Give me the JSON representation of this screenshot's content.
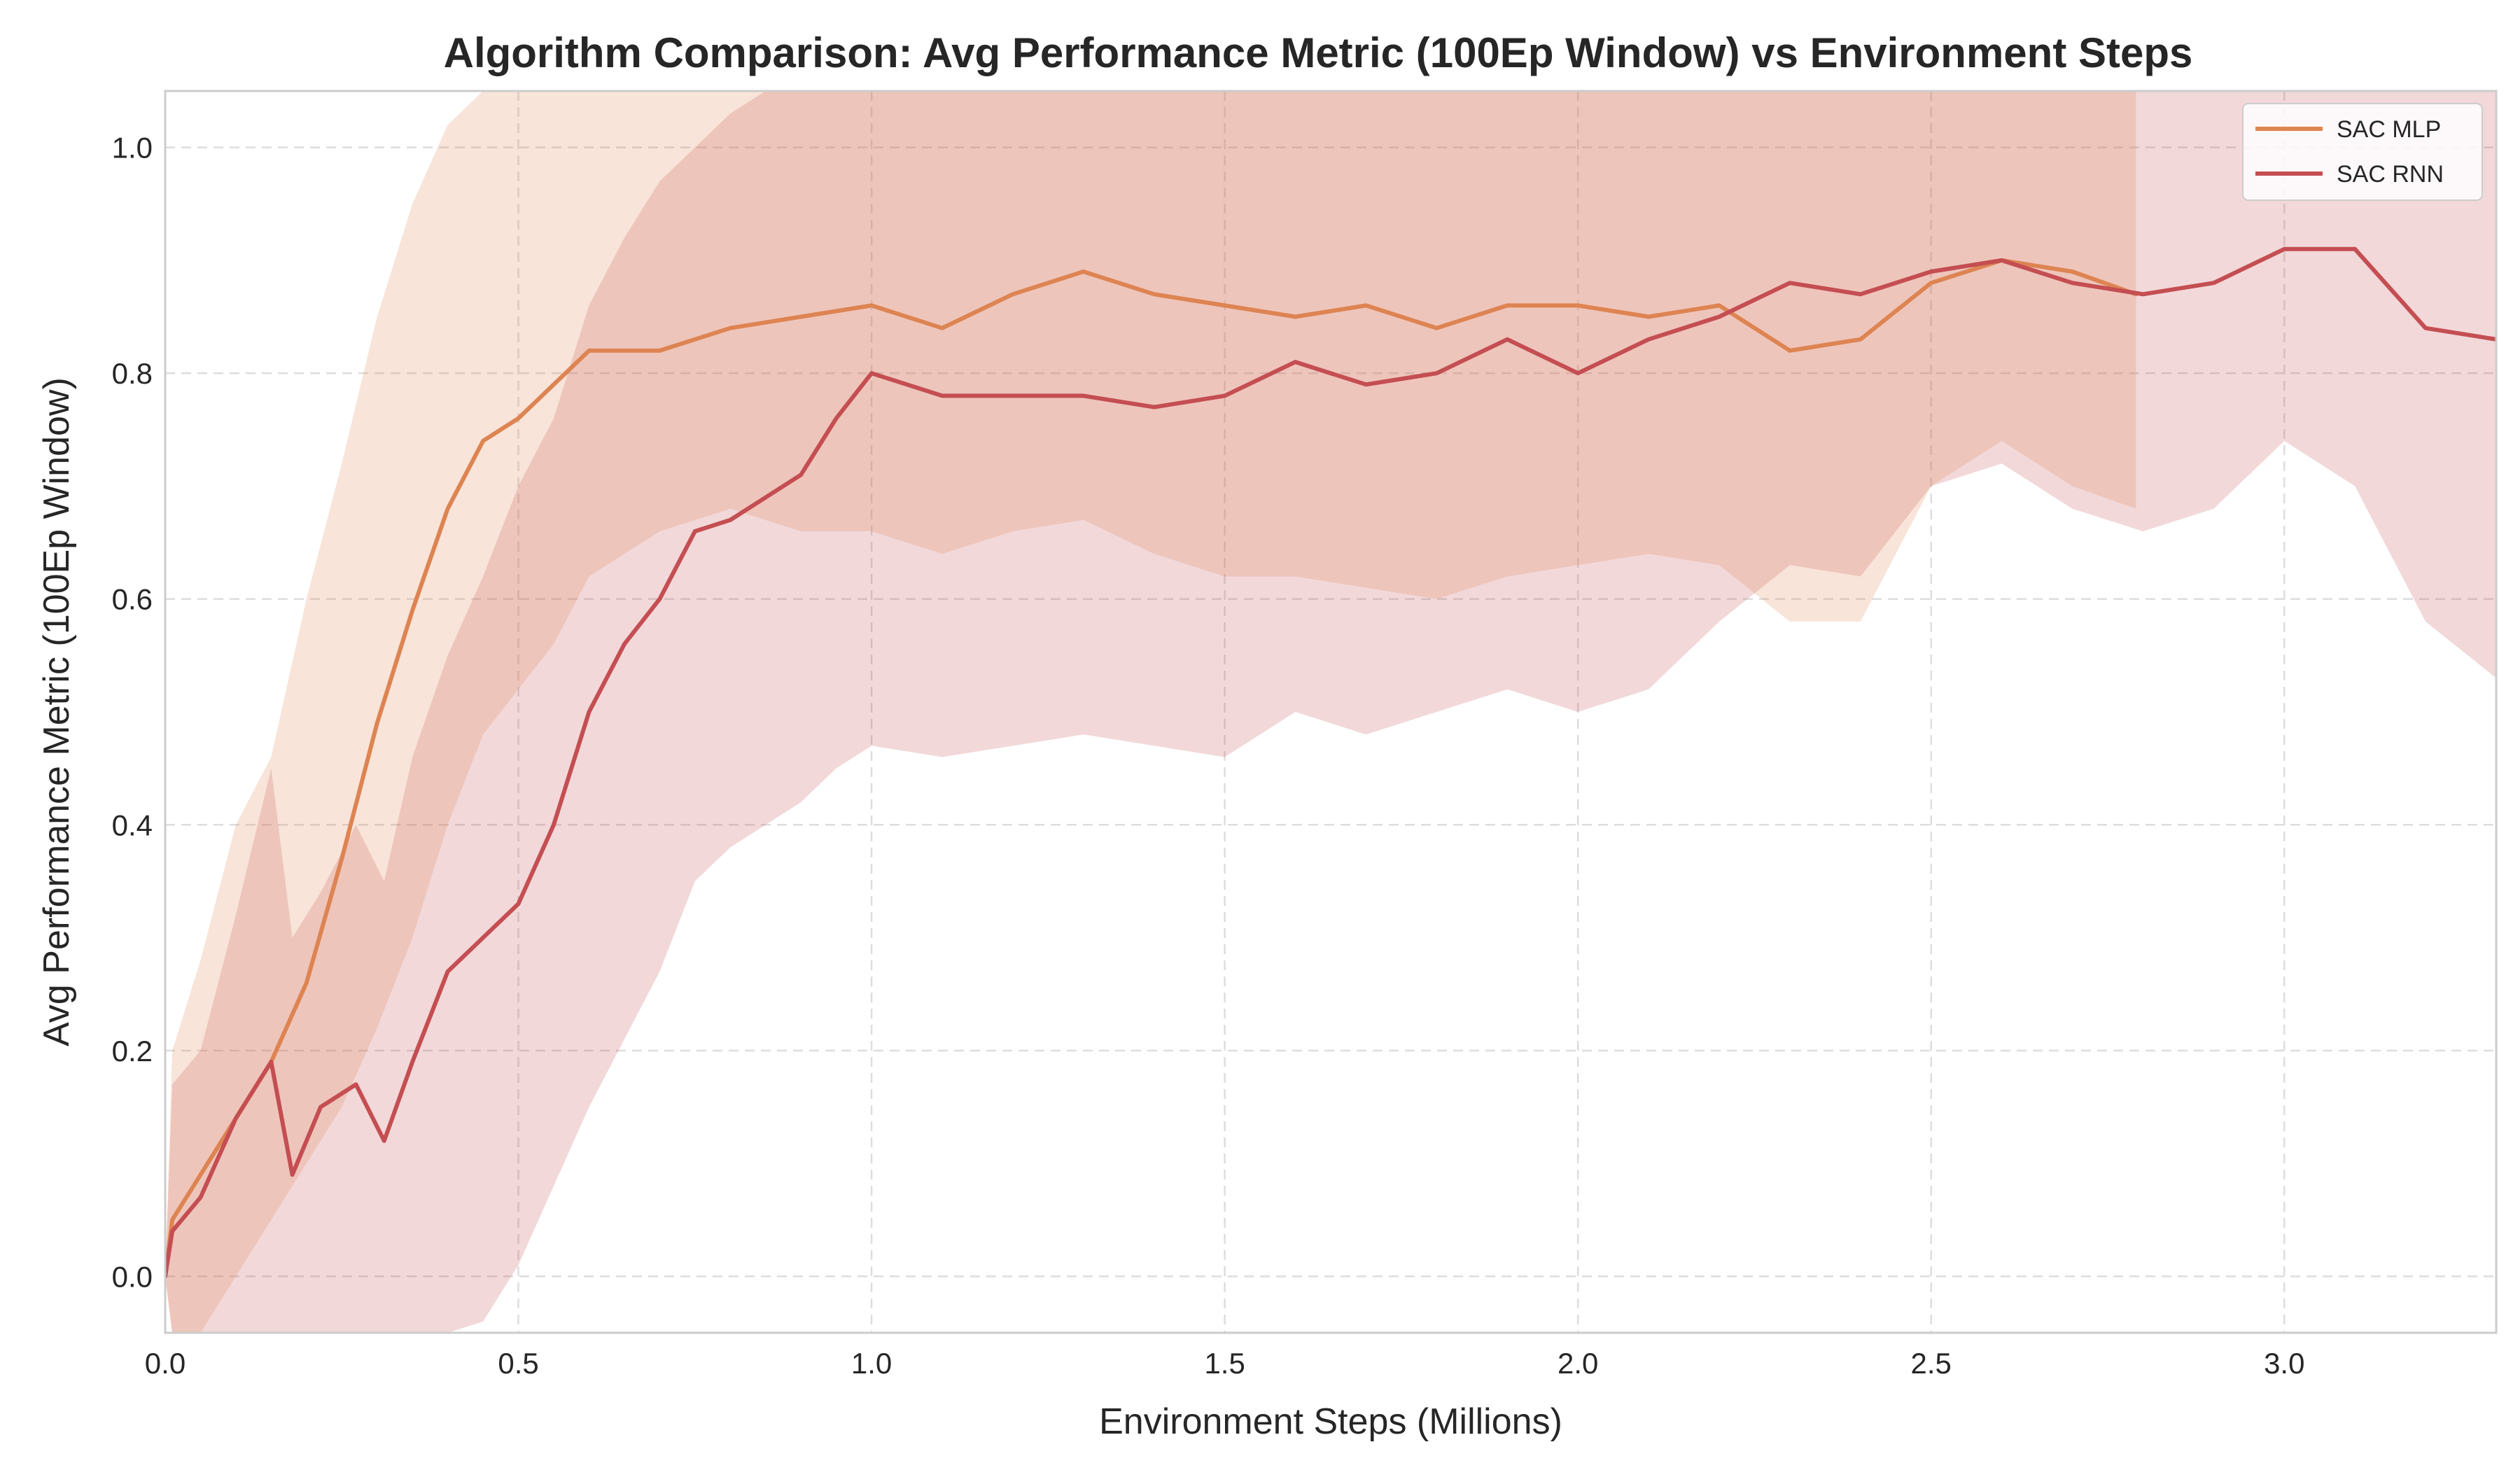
{
  "chart_data": {
    "type": "line",
    "title": "Algorithm Comparison: Avg Performance Metric (100Ep Window) vs Environment Steps",
    "xlabel": "Environment Steps (Millions)",
    "ylabel": "Avg Performance Metric (100Ep Window)",
    "xlim": [
      0.0,
      3.3
    ],
    "ylim": [
      -0.05,
      1.05
    ],
    "xticks": [
      "0.0",
      "0.5",
      "1.0",
      "1.5",
      "2.0",
      "2.5",
      "3.0"
    ],
    "yticks": [
      "0.0",
      "0.2",
      "0.4",
      "0.6",
      "0.8",
      "1.0"
    ],
    "grid": true,
    "legend_position": "top-right",
    "series": [
      {
        "name": "SAC MLP",
        "color": "#dd8452",
        "points": [
          [
            0.0,
            0.0,
            0.0,
            0.0
          ],
          [
            0.01,
            0.05,
            -0.05,
            0.2
          ],
          [
            0.05,
            0.09,
            -0.05,
            0.28
          ],
          [
            0.1,
            0.14,
            0.0,
            0.4
          ],
          [
            0.15,
            0.19,
            0.05,
            0.46
          ],
          [
            0.2,
            0.26,
            0.1,
            0.6
          ],
          [
            0.25,
            0.37,
            0.15,
            0.72
          ],
          [
            0.3,
            0.49,
            0.22,
            0.85
          ],
          [
            0.35,
            0.59,
            0.3,
            0.95
          ],
          [
            0.4,
            0.68,
            0.4,
            1.02
          ],
          [
            0.45,
            0.74,
            0.48,
            1.05
          ],
          [
            0.5,
            0.76,
            0.52,
            1.05
          ],
          [
            0.55,
            0.79,
            0.56,
            1.05
          ],
          [
            0.6,
            0.82,
            0.62,
            1.05
          ],
          [
            0.7,
            0.82,
            0.66,
            1.05
          ],
          [
            0.8,
            0.84,
            0.68,
            1.05
          ],
          [
            0.9,
            0.85,
            0.66,
            1.05
          ],
          [
            1.0,
            0.86,
            0.66,
            1.05
          ],
          [
            1.1,
            0.84,
            0.64,
            1.05
          ],
          [
            1.2,
            0.87,
            0.66,
            1.05
          ],
          [
            1.3,
            0.89,
            0.67,
            1.05
          ],
          [
            1.4,
            0.87,
            0.64,
            1.05
          ],
          [
            1.5,
            0.86,
            0.62,
            1.05
          ],
          [
            1.6,
            0.85,
            0.62,
            1.05
          ],
          [
            1.7,
            0.86,
            0.61,
            1.05
          ],
          [
            1.8,
            0.84,
            0.6,
            1.05
          ],
          [
            1.9,
            0.86,
            0.62,
            1.05
          ],
          [
            2.0,
            0.86,
            0.63,
            1.05
          ],
          [
            2.1,
            0.85,
            0.64,
            1.05
          ],
          [
            2.2,
            0.86,
            0.63,
            1.05
          ],
          [
            2.3,
            0.82,
            0.58,
            1.05
          ],
          [
            2.4,
            0.83,
            0.58,
            1.05
          ],
          [
            2.5,
            0.88,
            0.7,
            1.05
          ],
          [
            2.6,
            0.9,
            0.74,
            1.05
          ],
          [
            2.7,
            0.89,
            0.7,
            1.05
          ],
          [
            2.79,
            0.87,
            0.68,
            1.05
          ]
        ]
      },
      {
        "name": "SAC RNN",
        "color": "#c44e52",
        "points": [
          [
            0.0,
            0.0,
            0.0,
            0.0
          ],
          [
            0.01,
            0.04,
            -0.05,
            0.17
          ],
          [
            0.05,
            0.07,
            -0.05,
            0.2
          ],
          [
            0.1,
            0.14,
            -0.05,
            0.32
          ],
          [
            0.15,
            0.19,
            -0.05,
            0.45
          ],
          [
            0.18,
            0.09,
            -0.05,
            0.3
          ],
          [
            0.22,
            0.15,
            -0.05,
            0.34
          ],
          [
            0.27,
            0.17,
            -0.05,
            0.4
          ],
          [
            0.31,
            0.12,
            -0.05,
            0.35
          ],
          [
            0.35,
            0.19,
            -0.05,
            0.46
          ],
          [
            0.4,
            0.27,
            -0.05,
            0.55
          ],
          [
            0.45,
            0.3,
            -0.04,
            0.62
          ],
          [
            0.5,
            0.33,
            0.01,
            0.7
          ],
          [
            0.55,
            0.4,
            0.08,
            0.76
          ],
          [
            0.6,
            0.5,
            0.15,
            0.86
          ],
          [
            0.65,
            0.56,
            0.21,
            0.92
          ],
          [
            0.7,
            0.6,
            0.27,
            0.97
          ],
          [
            0.75,
            0.66,
            0.35,
            1.0
          ],
          [
            0.8,
            0.67,
            0.38,
            1.03
          ],
          [
            0.85,
            0.69,
            0.4,
            1.05
          ],
          [
            0.9,
            0.71,
            0.42,
            1.05
          ],
          [
            0.95,
            0.76,
            0.45,
            1.05
          ],
          [
            1.0,
            0.8,
            0.47,
            1.05
          ],
          [
            1.1,
            0.78,
            0.46,
            1.05
          ],
          [
            1.2,
            0.78,
            0.47,
            1.05
          ],
          [
            1.3,
            0.78,
            0.48,
            1.05
          ],
          [
            1.4,
            0.77,
            0.47,
            1.05
          ],
          [
            1.5,
            0.78,
            0.46,
            1.05
          ],
          [
            1.6,
            0.81,
            0.5,
            1.05
          ],
          [
            1.7,
            0.79,
            0.48,
            1.05
          ],
          [
            1.8,
            0.8,
            0.5,
            1.05
          ],
          [
            1.9,
            0.83,
            0.52,
            1.05
          ],
          [
            2.0,
            0.8,
            0.5,
            1.05
          ],
          [
            2.1,
            0.83,
            0.52,
            1.05
          ],
          [
            2.2,
            0.85,
            0.58,
            1.05
          ],
          [
            2.3,
            0.88,
            0.63,
            1.05
          ],
          [
            2.4,
            0.87,
            0.62,
            1.05
          ],
          [
            2.5,
            0.89,
            0.7,
            1.05
          ],
          [
            2.6,
            0.9,
            0.72,
            1.05
          ],
          [
            2.7,
            0.88,
            0.68,
            1.05
          ],
          [
            2.8,
            0.87,
            0.66,
            1.05
          ],
          [
            2.9,
            0.88,
            0.68,
            1.05
          ],
          [
            3.0,
            0.91,
            0.74,
            1.05
          ],
          [
            3.1,
            0.91,
            0.7,
            1.05
          ],
          [
            3.2,
            0.84,
            0.58,
            1.05
          ],
          [
            3.3,
            0.83,
            0.53,
            1.05
          ]
        ]
      }
    ]
  }
}
